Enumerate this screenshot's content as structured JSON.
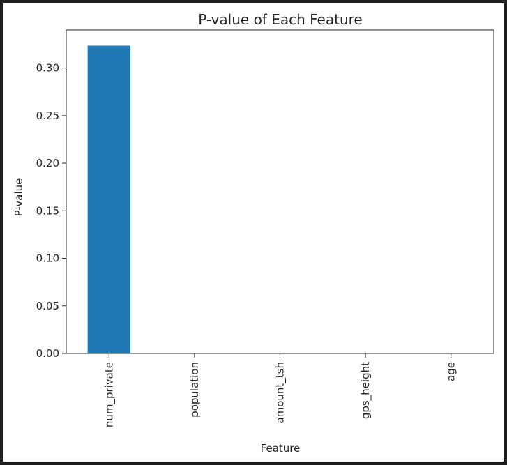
{
  "chart_data": {
    "type": "bar",
    "title": "P-value of Each Feature",
    "xlabel": "Feature",
    "ylabel": "P-value",
    "categories": [
      "num_private",
      "population",
      "amount_tsh",
      "gps_height",
      "age"
    ],
    "values": [
      0.3235,
      0.0,
      0.0,
      0.0,
      0.0
    ],
    "ylim": [
      0,
      0.34
    ],
    "yticks": [
      "0.00",
      "0.05",
      "0.10",
      "0.15",
      "0.20",
      "0.25",
      "0.30"
    ],
    "bar_color": "#1f77b4",
    "grid": false,
    "legend": "none"
  }
}
